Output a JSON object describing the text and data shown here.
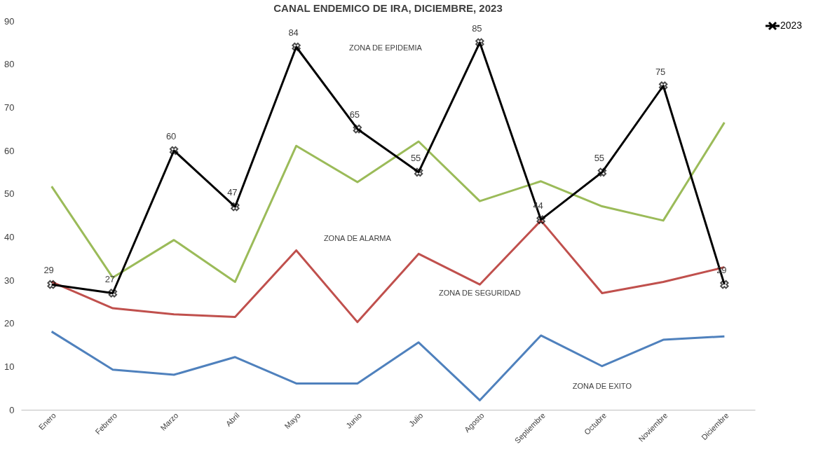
{
  "chart_data": {
    "type": "line",
    "title": "CANAL ENDEMICO DE IRA, DICIEMBRE, 2023",
    "categories": [
      "Enero",
      "Febrero",
      "Marzo",
      "Abril",
      "Mayo",
      "Junio",
      "Julio",
      "Agosto",
      "Septiembre",
      "Octubre",
      "Noviembre",
      "Diciembre"
    ],
    "series": [
      {
        "color": "#4f81bd",
        "values": [
          18.1,
          9.3,
          8.1,
          12.2,
          6.1,
          6.1,
          15.6,
          2.2,
          17.2,
          10.1,
          16.2,
          17.0
        ]
      },
      {
        "color": "#c0504d",
        "values": [
          29.6,
          23.5,
          22.1,
          21.5,
          36.9,
          20.3,
          36.1,
          29.0,
          43.8,
          27.0,
          29.6,
          33.0
        ]
      },
      {
        "color": "#9bbb59",
        "values": [
          51.7,
          30.6,
          39.3,
          29.6,
          61.1,
          52.7,
          62.1,
          48.3,
          52.9,
          47.1,
          43.8,
          66.5
        ]
      },
      {
        "name": "2023",
        "color": "#000000",
        "marker": "cross",
        "values": [
          29,
          27,
          60,
          47,
          84,
          65,
          55,
          85,
          44,
          55,
          75,
          29
        ],
        "value_labels": [
          "29",
          "27",
          "60",
          "47",
          "84",
          "65",
          "55",
          "85",
          "44",
          "55",
          "75",
          "29"
        ]
      }
    ],
    "ylim": [
      0,
      90
    ],
    "yticks": [
      0,
      10,
      20,
      30,
      40,
      50,
      60,
      70,
      80,
      90
    ],
    "grid": false,
    "legend": "right",
    "annotations": [
      "ZONA DE EPIDEMIA",
      "ZONA DE ALARMA",
      "ZONA DE SEGURIDAD",
      "ZONA DE EXITO"
    ]
  }
}
